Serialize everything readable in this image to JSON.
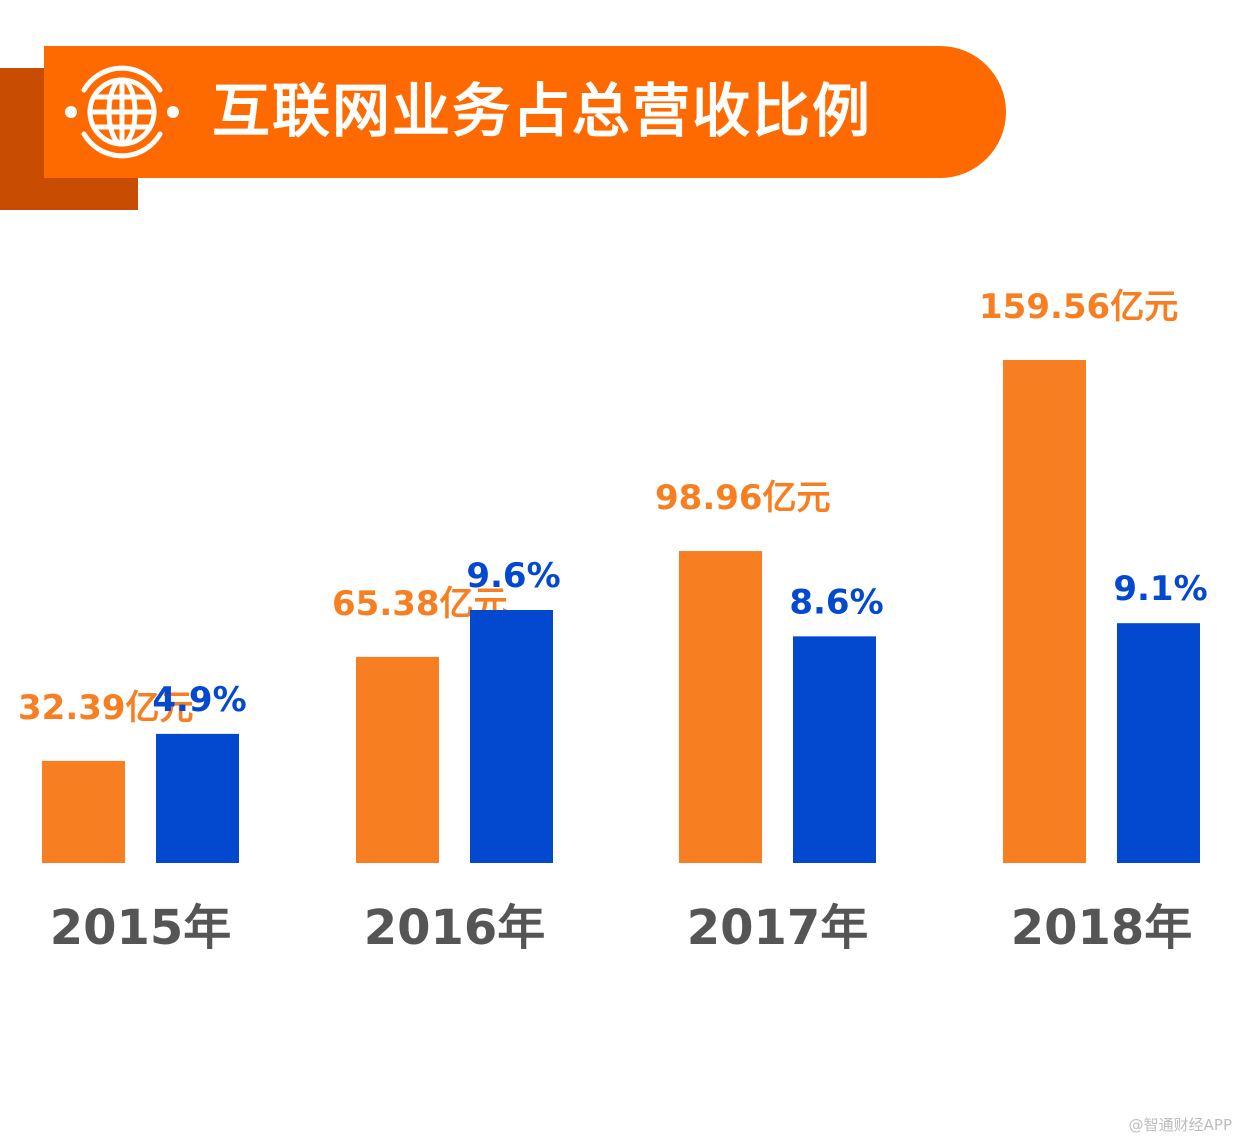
{
  "title": "互联网业务占总营收比例",
  "watermark": "@智通财经APP",
  "icon": "globe-icon",
  "colors": {
    "banner": "#ff6a00",
    "banner_shadow": "#c94d00",
    "revenue": "#f77f21",
    "ratio": "#0349d0",
    "category": "#555555"
  },
  "chart_data": {
    "type": "bar",
    "title": "互联网业务占总营收比例",
    "categories": [
      "2015年",
      "2016年",
      "2017年",
      "2018年"
    ],
    "series": [
      {
        "key": "revenue",
        "values": [
          32.39,
          65.38,
          98.96,
          159.56
        ],
        "labels": [
          "32.39亿元",
          "65.38亿元",
          "98.96亿元",
          "159.56亿元"
        ]
      },
      {
        "key": "ratio",
        "values": [
          4.9,
          9.6,
          8.6,
          9.1
        ],
        "labels": [
          "4.9%",
          "9.6%",
          "8.6%",
          "9.1%"
        ]
      }
    ],
    "grid": false,
    "legend": "none"
  }
}
